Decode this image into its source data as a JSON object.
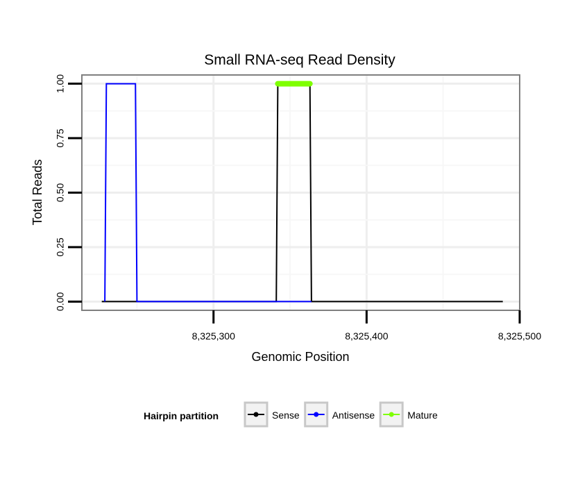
{
  "chart_data": {
    "type": "line",
    "title": "Small RNA-seq Read Density",
    "xlabel": "Genomic Position",
    "ylabel": "Total Reads",
    "xlim": [
      8325214,
      8325500
    ],
    "ylim": [
      -0.04,
      1.04
    ],
    "x_ticks": [
      8325300,
      8325400,
      8325500
    ],
    "x_tick_labels": [
      "8,325,300",
      "8,325,400",
      "8,325,500"
    ],
    "y_ticks": [
      0,
      0.25,
      0.5,
      0.75,
      1.0
    ],
    "y_tick_labels": [
      "0.00",
      "0.25",
      "0.50",
      "0.75",
      "1.00"
    ],
    "grid": true,
    "legend_position": "bottom",
    "legend_title": "Hairpin partition",
    "series": [
      {
        "name": "Sense",
        "color": "#000000",
        "x": [
          8325227,
          8325341,
          8325342,
          8325363,
          8325364,
          8325489
        ],
        "y": [
          0,
          0,
          1,
          1,
          0,
          0
        ]
      },
      {
        "name": "Antisense",
        "color": "#0000ff",
        "x": [
          8325229,
          8325230,
          8325249,
          8325250,
          8325342,
          8325364
        ],
        "y": [
          0,
          1,
          1,
          0,
          0,
          0
        ]
      },
      {
        "name": "Mature",
        "color": "#7fff00",
        "x": [
          8325342,
          8325363
        ],
        "y": [
          1,
          1
        ]
      }
    ]
  }
}
